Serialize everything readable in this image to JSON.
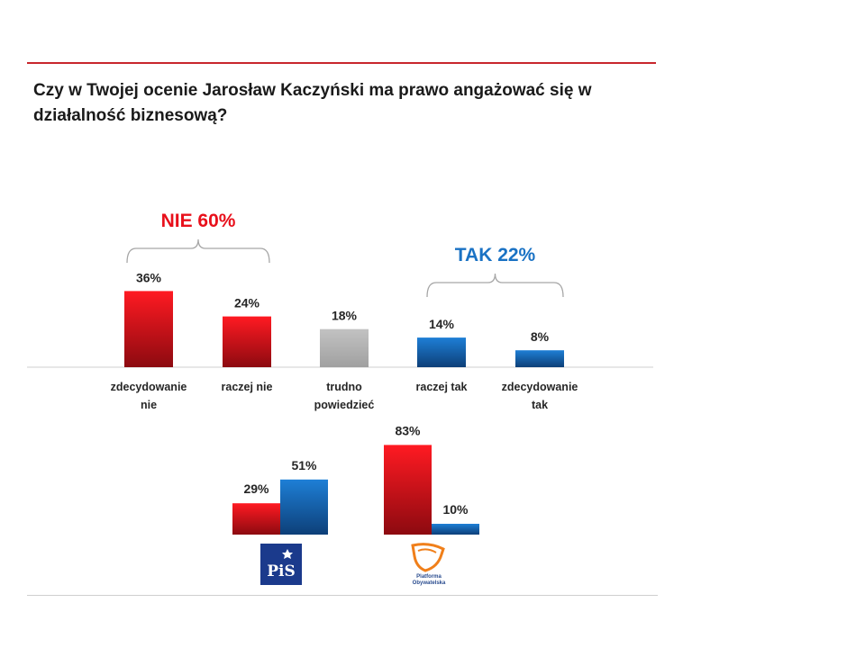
{
  "title": "Czy w Twojej ocenie Jarosław Kaczyński ma prawo angażować się w działalność biznesową?",
  "colors": {
    "red": "#e8101b",
    "red_dark": "#8c0a10",
    "blue": "#1a72c4",
    "blue_dark": "#0d3f78",
    "gray": "#b3b3b3",
    "rule": "#c8262c"
  },
  "chart_data": [
    {
      "type": "bar",
      "title": "",
      "categories": [
        "zdecydowanie nie",
        "raczej nie",
        "trudno powiedzieć",
        "raczej tak",
        "zdecydowanie tak"
      ],
      "values": [
        36,
        24,
        18,
        14,
        8
      ],
      "value_labels": [
        "36%",
        "24%",
        "18%",
        "14%",
        "8%"
      ],
      "bar_colors": [
        "red",
        "red",
        "gray",
        "blue",
        "blue"
      ],
      "ylim": [
        0,
        40
      ],
      "groups": [
        {
          "label": "NIE 60%",
          "color": "#e8101b",
          "categories": [
            "zdecydowanie nie",
            "raczej nie"
          ]
        },
        {
          "label": "TAK 22%",
          "color": "#1a72c4",
          "categories": [
            "raczej tak",
            "zdecydowanie tak"
          ]
        }
      ]
    },
    {
      "type": "bar",
      "title": "",
      "categories": [
        "PiS",
        "Platforma Obywatelska"
      ],
      "series": [
        {
          "name": "NIE",
          "color": "red",
          "values": [
            29,
            83
          ],
          "labels": [
            "29%",
            "83%"
          ]
        },
        {
          "name": "TAK",
          "color": "blue",
          "values": [
            51,
            10
          ],
          "labels": [
            "51%",
            "10%"
          ]
        }
      ],
      "ylim": [
        0,
        90
      ]
    }
  ],
  "logos": {
    "pis": {
      "text": "PiS"
    },
    "po": {
      "line1": "Platforma",
      "line2": "Obywatelska"
    }
  }
}
